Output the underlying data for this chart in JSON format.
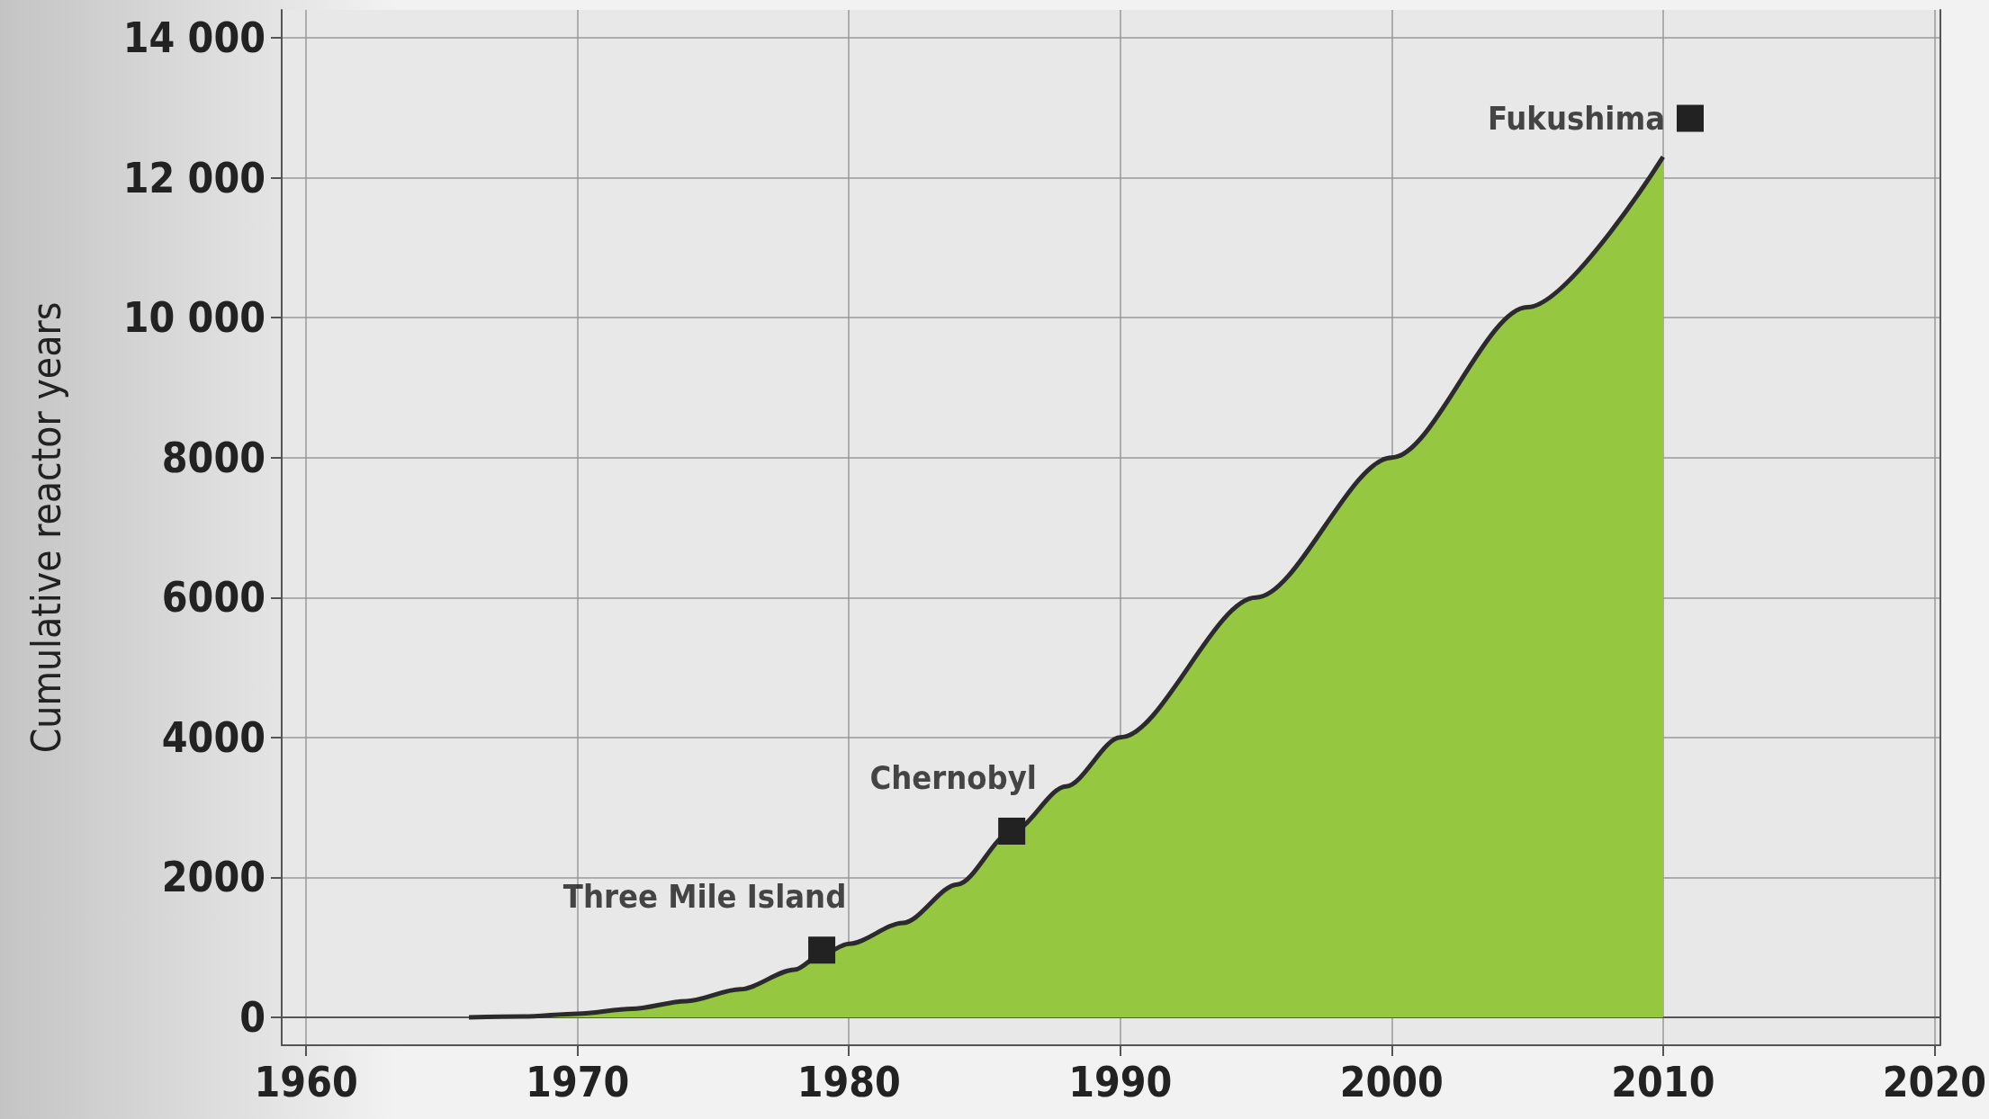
{
  "chart_data": {
    "type": "area",
    "ylabel": "Cumulative reactor years",
    "series": [
      {
        "color": "#95c840",
        "x": [
          1966,
          1968,
          1970,
          1972,
          1974,
          1976,
          1978,
          1979,
          1980,
          1982,
          1984,
          1986,
          1988,
          1990,
          1995,
          2000,
          2005,
          2010
        ],
        "values": [
          0,
          10,
          50,
          120,
          230,
          400,
          680,
          900,
          1050,
          1350,
          1900,
          2650,
          3300,
          4000,
          6000,
          8000,
          10150,
          12300
        ]
      },
      {
        "type": "scatter",
        "color": "#222222",
        "marker": "square",
        "x": [
          1979,
          1986,
          2011
        ],
        "values": [
          960,
          2660,
          12850
        ]
      }
    ],
    "annotations": [
      {
        "text": "Three Mile Island",
        "x": 1979,
        "y": 960
      },
      {
        "text": "Chernobyl",
        "x": 1986,
        "y": 2660
      },
      {
        "text": "Fukushima",
        "x": 2011,
        "y": 12850
      }
    ],
    "xlim": [
      1959.1,
      2020.2
    ],
    "xticks": [
      1960,
      1970,
      1980,
      1990,
      2000,
      2010,
      2020
    ],
    "ylim": [
      -400,
      14400
    ],
    "yticks": [
      0,
      2000,
      4000,
      6000,
      8000,
      {
        "value": 10000,
        "label": "10 000"
      },
      {
        "value": 12000,
        "label": "12 000"
      },
      {
        "value": 14000,
        "label": "14 000"
      }
    ],
    "grid": true
  }
}
